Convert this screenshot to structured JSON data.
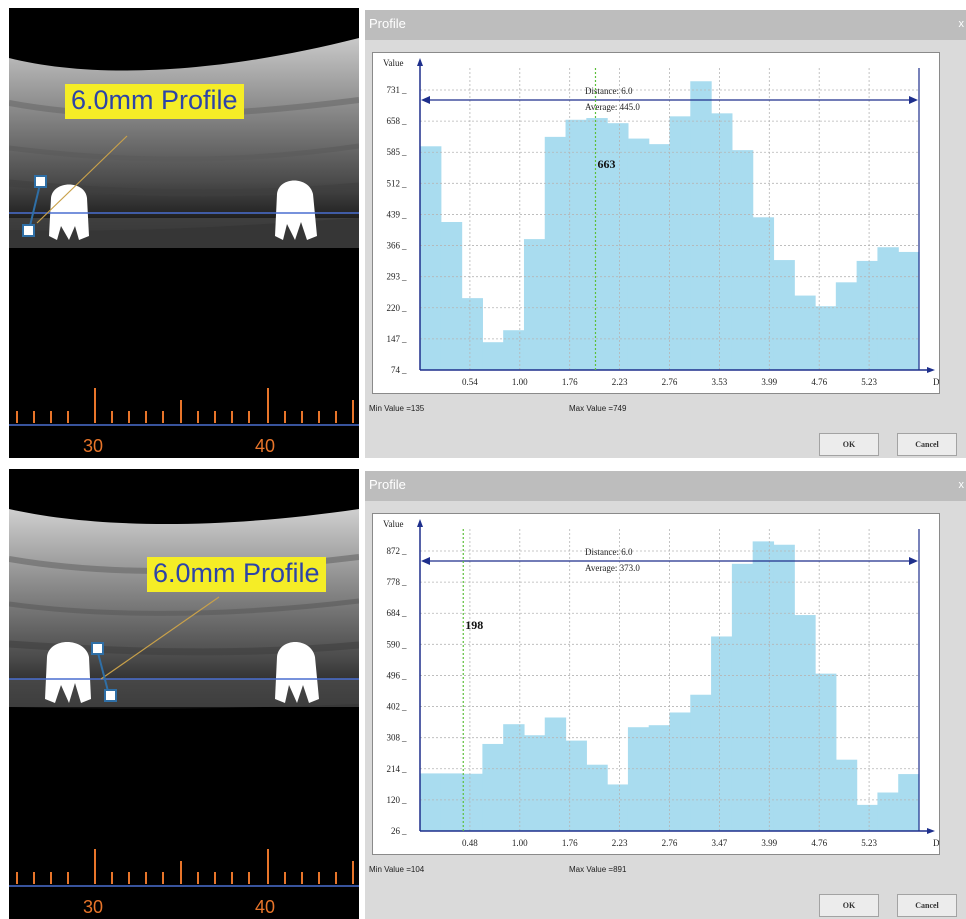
{
  "panels": [
    {
      "ct_label": "6.0mm Profile",
      "ruler_numbers": [
        "30",
        "40"
      ],
      "dialog": {
        "title": "Profile",
        "close": "x",
        "ok_label": "OK",
        "cancel_label": "Cancel",
        "min_text": "Min Value =135",
        "max_text": "Max Value =749"
      },
      "chart_data": {
        "type": "area",
        "title": "",
        "xlabel": "Distance",
        "ylabel": "Value",
        "y_ticks": [
          "731",
          "658",
          "585",
          "512",
          "439",
          "366",
          "293",
          "220",
          "147",
          "74"
        ],
        "x_ticks": [
          "0.54",
          "1.00",
          "1.76",
          "2.23",
          "2.76",
          "3.53",
          "3.99",
          "4.76",
          "5.23"
        ],
        "ylim": [
          74,
          780
        ],
        "xlim": [
          0,
          6.0
        ],
        "annotations": {
          "distance": "Distance: 6.0",
          "average": "Average: 445.0"
        },
        "cursor": {
          "x": 2.11,
          "value": "663"
        },
        "grid": true,
        "values": [
          597,
          420,
          242,
          139,
          167,
          380,
          619,
          659,
          663,
          651,
          615,
          602,
          667,
          749,
          674,
          588,
          431,
          331,
          248,
          223,
          279,
          329,
          361,
          350
        ]
      }
    },
    {
      "ct_label": "6.0mm Profile",
      "ruler_numbers": [
        "30",
        "40"
      ],
      "dialog": {
        "title": "Profile",
        "close": "x",
        "ok_label": "OK",
        "cancel_label": "Cancel",
        "min_text": "Min Value =104",
        "max_text": "Max Value =891"
      },
      "chart_data": {
        "type": "area",
        "title": "",
        "xlabel": "Distance",
        "ylabel": "Value",
        "y_ticks": [
          "872",
          "778",
          "684",
          "590",
          "496",
          "402",
          "308",
          "214",
          "120",
          "26"
        ],
        "x_ticks": [
          "0.48",
          "1.00",
          "1.76",
          "2.23",
          "2.76",
          "3.47",
          "3.99",
          "4.76",
          "5.23"
        ],
        "ylim": [
          26,
          928
        ],
        "xlim": [
          0,
          6.0
        ],
        "annotations": {
          "distance": "Distance: 6.0",
          "average": "Average: 373.0"
        },
        "cursor": {
          "x": 0.52,
          "value": "198"
        },
        "grid": true,
        "values": [
          198,
          198,
          197,
          286,
          345,
          312,
          365,
          296,
          224,
          165,
          336,
          342,
          380,
          433,
          607,
          824,
          891,
          881,
          671,
          496,
          239,
          104,
          141,
          196
        ]
      }
    }
  ]
}
